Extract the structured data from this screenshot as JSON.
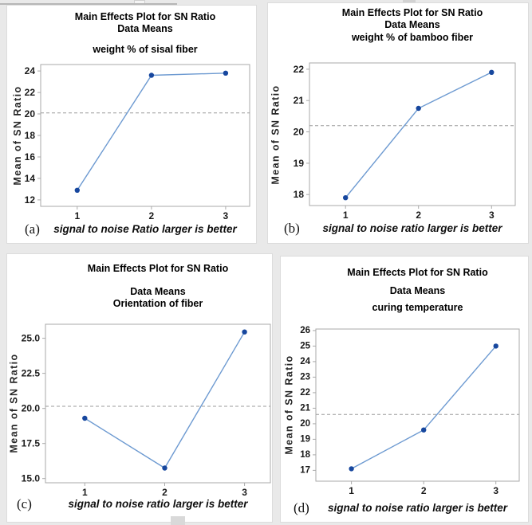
{
  "colors": {
    "page_background": "#e9e9e9",
    "panel_background": "#ffffff",
    "series_line": "#6d9ad1",
    "marker": "#17479e",
    "mean_reference_line": "#9b9b9b",
    "axis_frame": "#a9a9a9",
    "tick_text": "#1a1a1a"
  },
  "chart_data": [
    {
      "type": "line",
      "label": "(a)",
      "title": "Main Effects Plot for SN Ratio",
      "subtitle": "Data Means",
      "factor": "weight % of sisal fiber",
      "ylabel": "Mean of SN Ratio",
      "caption": "signal to noise Ratio larger is better",
      "x": [
        "1",
        "2",
        "3"
      ],
      "values": [
        12.9,
        23.6,
        23.8
      ],
      "mean_line": 20.1,
      "yticks": [
        "12",
        "14",
        "16",
        "18",
        "20",
        "22",
        "24"
      ],
      "ylim": [
        11.4,
        24.6
      ],
      "legend": "none",
      "grid": "off"
    },
    {
      "type": "line",
      "label": "(b)",
      "title": "Main Effects Plot for SN Ratio",
      "subtitle": "Data Means",
      "factor": "weight % of bamboo fiber",
      "ylabel": "Mean of SN Ratio",
      "caption": "signal to noise ratio larger is better",
      "x": [
        "1",
        "2",
        "3"
      ],
      "values": [
        17.9,
        20.75,
        21.9
      ],
      "mean_line": 20.2,
      "yticks": [
        "18",
        "19",
        "20",
        "21",
        "22"
      ],
      "ylim": [
        17.65,
        22.2
      ],
      "legend": "none",
      "grid": "off"
    },
    {
      "type": "line",
      "label": "(c)",
      "title": "Main Effects Plot for SN Ratio",
      "subtitle": "Data Means",
      "factor": "Orientation of fiber",
      "ylabel": "Mean of SN Ratio",
      "caption": "signal to noise ratio larger is better",
      "x": [
        "1",
        "2",
        "3"
      ],
      "values": [
        19.3,
        15.75,
        25.45
      ],
      "mean_line": 20.15,
      "yticks": [
        "15.0",
        "17.5",
        "20.0",
        "22.5",
        "25.0"
      ],
      "ylim": [
        14.7,
        26.0
      ],
      "legend": "none",
      "grid": "off"
    },
    {
      "type": "line",
      "label": "(d)",
      "title": "Main Effects Plot for SN Ratio",
      "subtitle": "Data Means",
      "factor": "curing temperature",
      "ylabel": "Mean of SN Ratio",
      "caption": "signal to noise ratio larger is better",
      "x": [
        "1",
        "2",
        "3"
      ],
      "values": [
        17.1,
        19.6,
        25.0
      ],
      "mean_line": 20.6,
      "yticks": [
        "17",
        "18",
        "19",
        "20",
        "21",
        "22",
        "23",
        "24",
        "25",
        "26"
      ],
      "ylim": [
        16.3,
        26.1
      ],
      "legend": "none",
      "grid": "off"
    }
  ]
}
